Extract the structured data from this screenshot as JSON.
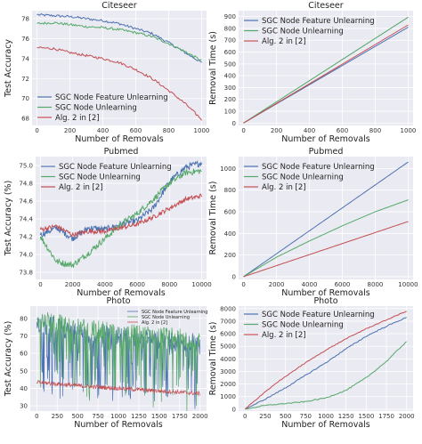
{
  "colors": {
    "feature": "#4c72b0",
    "node": "#55a868",
    "alg2": "#c44e52"
  },
  "chart_data": [
    {
      "type": "line",
      "title": "Citeseer",
      "xlabel": "Number of Removals",
      "ylabel": "Test Accuracy",
      "xlim": [
        -30,
        1030
      ],
      "ylim": [
        67.3,
        78.8
      ],
      "xticks": [
        "0",
        "200",
        "400",
        "600",
        "800",
        "1000"
      ],
      "yticks": [
        "68",
        "70",
        "72",
        "74",
        "76",
        "78"
      ],
      "legend": "lower-left",
      "series": [
        {
          "name": "SGC Node Feature Unlearning",
          "x": [
            0,
            100,
            200,
            300,
            400,
            500,
            600,
            700,
            800,
            900,
            1000
          ],
          "y": [
            78.4,
            78.3,
            78.2,
            78.0,
            77.8,
            77.5,
            77.0,
            76.5,
            75.6,
            74.6,
            73.6
          ]
        },
        {
          "name": "SGC Node Unlearning",
          "x": [
            0,
            100,
            200,
            300,
            400,
            500,
            600,
            700,
            800,
            900,
            1000
          ],
          "y": [
            77.5,
            77.6,
            77.4,
            77.2,
            77.1,
            76.9,
            76.6,
            76.2,
            75.5,
            74.7,
            73.8
          ]
        },
        {
          "name": "Alg. 2 in [2]",
          "x": [
            0,
            100,
            200,
            300,
            400,
            500,
            600,
            700,
            800,
            900,
            1000
          ],
          "y": [
            75.1,
            75.0,
            74.6,
            74.3,
            74.0,
            73.6,
            72.9,
            72.0,
            70.8,
            69.5,
            67.9
          ]
        }
      ]
    },
    {
      "type": "line",
      "title": "Citeseer",
      "xlabel": "Number of Removals",
      "ylabel": "Removal Time (s)",
      "xlim": [
        -30,
        1030
      ],
      "ylim": [
        -20,
        950
      ],
      "xticks": [
        "0",
        "200",
        "400",
        "600",
        "800",
        "1000"
      ],
      "yticks": [
        "0",
        "100",
        "200",
        "300",
        "400",
        "500",
        "600",
        "700",
        "800",
        "900"
      ],
      "legend": "top-left",
      "series": [
        {
          "name": "SGC Node Feature Unlearning",
          "x": [
            0,
            1000
          ],
          "y": [
            0,
            810
          ]
        },
        {
          "name": "SGC Node Unlearning",
          "x": [
            0,
            1000
          ],
          "y": [
            0,
            895
          ]
        },
        {
          "name": "Alg. 2 in [2]",
          "x": [
            0,
            1000
          ],
          "y": [
            0,
            830
          ]
        }
      ]
    },
    {
      "type": "line",
      "title": "Pubmed",
      "xlabel": "Number of Removals",
      "ylabel": "Test Accuracy (%)",
      "xlim": [
        -300,
        10300
      ],
      "ylim": [
        73.72,
        75.1
      ],
      "xticks": [
        "0",
        "2000",
        "4000",
        "6000",
        "8000",
        "10000"
      ],
      "yticks": [
        "73.8",
        "74.0",
        "74.2",
        "74.4",
        "74.6",
        "74.8",
        "75.0"
      ],
      "legend": "top-left",
      "series": [
        {
          "name": "SGC Node Feature Unlearning",
          "x": [
            0,
            1000,
            2000,
            3000,
            4000,
            5000,
            6000,
            7000,
            8000,
            9000,
            10000
          ],
          "y": [
            74.22,
            74.3,
            74.18,
            74.3,
            74.28,
            74.34,
            74.38,
            74.52,
            74.82,
            74.98,
            75.03
          ]
        },
        {
          "name": "SGC Node Unlearning",
          "x": [
            0,
            1000,
            2000,
            3000,
            4000,
            5000,
            6000,
            7000,
            8000,
            9000,
            10000
          ],
          "y": [
            74.2,
            73.92,
            73.88,
            74.02,
            74.18,
            74.34,
            74.46,
            74.62,
            74.8,
            74.92,
            74.94
          ]
        },
        {
          "name": "Alg. 2 in [2]",
          "x": [
            0,
            1000,
            2000,
            3000,
            4000,
            5000,
            6000,
            7000,
            8000,
            9000,
            10000
          ],
          "y": [
            74.28,
            74.32,
            74.22,
            74.26,
            74.26,
            74.3,
            74.34,
            74.42,
            74.52,
            74.62,
            74.66
          ]
        }
      ]
    },
    {
      "type": "line",
      "title": "Pubmed",
      "xlabel": "Number of Removals",
      "ylabel": "Removal Time (s)",
      "xlim": [
        -300,
        10300
      ],
      "ylim": [
        -25,
        1110
      ],
      "xticks": [
        "0",
        "2000",
        "4000",
        "6000",
        "8000",
        "10000"
      ],
      "yticks": [
        "0",
        "200",
        "400",
        "600",
        "800",
        "1000"
      ],
      "legend": "top-left",
      "series": [
        {
          "name": "SGC Node Feature Unlearning",
          "x": [
            0,
            10000
          ],
          "y": [
            0,
            1060
          ]
        },
        {
          "name": "SGC Node Unlearning",
          "x": [
            0,
            2000,
            4000,
            6000,
            8000,
            10000
          ],
          "y": [
            0,
            180,
            330,
            470,
            600,
            710
          ]
        },
        {
          "name": "Alg. 2 in [2]",
          "x": [
            0,
            10000
          ],
          "y": [
            0,
            510
          ]
        }
      ]
    },
    {
      "type": "line",
      "title": "Photo",
      "xlabel": "Number of Removals",
      "ylabel": "Test Accuracy (%)",
      "xlim": [
        -80,
        2080
      ],
      "ylim": [
        27,
        87
      ],
      "xticks": [
        "0",
        "250",
        "500",
        "750",
        "1000",
        "1250",
        "1500",
        "1750",
        "2000"
      ],
      "yticks": [
        "30",
        "40",
        "50",
        "60",
        "70",
        "80"
      ],
      "legend": "top-right",
      "series": [
        {
          "name": "SGC Node Feature Unlearning",
          "x": [
            0,
            500,
            1000,
            1500,
            2000
          ],
          "y": [
            78,
            72,
            70,
            68,
            66
          ]
        },
        {
          "name": "SGC Node Unlearning",
          "x": [
            0,
            500,
            1000,
            1500,
            2000
          ],
          "y": [
            80,
            75,
            72,
            70,
            68
          ]
        },
        {
          "name": "Alg. 2 in [2]",
          "x": [
            0,
            500,
            1000,
            1500,
            2000
          ],
          "y": [
            43.5,
            41.5,
            40,
            38.5,
            37
          ]
        }
      ]
    },
    {
      "type": "line",
      "title": "Photo",
      "xlabel": "Number of Removals",
      "ylabel": "Removal Time (s)",
      "xlim": [
        -80,
        2080
      ],
      "ylim": [
        -150,
        8200
      ],
      "xticks": [
        "0",
        "250",
        "500",
        "750",
        "1000",
        "1250",
        "1500",
        "1750",
        "2000"
      ],
      "yticks": [
        "0",
        "1000",
        "2000",
        "3000",
        "4000",
        "5000",
        "6000",
        "7000",
        "8000"
      ],
      "legend": "top-left",
      "series": [
        {
          "name": "SGC Node Feature Unlearning",
          "x": [
            0,
            250,
            500,
            750,
            1000,
            1250,
            1500,
            1750,
            2000
          ],
          "y": [
            0,
            800,
            1700,
            2700,
            3700,
            4800,
            5800,
            6600,
            7300
          ]
        },
        {
          "name": "SGC Node Unlearning",
          "x": [
            0,
            250,
            500,
            750,
            1000,
            1250,
            1500,
            1750,
            2000
          ],
          "y": [
            0,
            300,
            450,
            600,
            900,
            1500,
            2500,
            3800,
            5400
          ]
        },
        {
          "name": "Alg. 2 in [2]",
          "x": [
            0,
            250,
            500,
            750,
            1000,
            1250,
            1500,
            1750,
            2000
          ],
          "y": [
            0,
            1400,
            2600,
            3700,
            4700,
            5600,
            6400,
            7100,
            7800
          ]
        }
      ]
    }
  ]
}
